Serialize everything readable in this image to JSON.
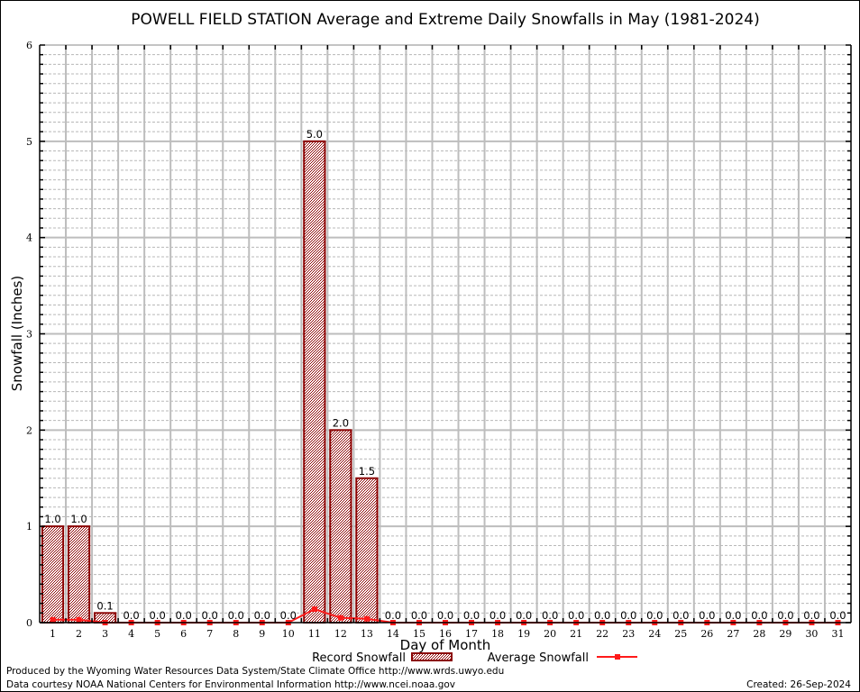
{
  "chart_data": {
    "type": "bar",
    "title": "POWELL FIELD STATION Average and Extreme Daily Snowfalls in May (1981-2024)",
    "xlabel": "Day of Month",
    "ylabel": "Snowfall (Inches)",
    "xlim": [
      0.5,
      31.5
    ],
    "ylim": [
      0,
      6
    ],
    "yticks": [
      "0",
      "1",
      "2",
      "3",
      "4",
      "5",
      "6"
    ],
    "grid": true,
    "categories": [
      "1",
      "2",
      "3",
      "4",
      "5",
      "6",
      "7",
      "8",
      "9",
      "10",
      "11",
      "12",
      "13",
      "14",
      "15",
      "16",
      "17",
      "18",
      "19",
      "20",
      "21",
      "22",
      "23",
      "24",
      "25",
      "26",
      "27",
      "28",
      "29",
      "30",
      "31"
    ],
    "series": [
      {
        "name": "Record Snowfall",
        "type": "bar",
        "color": "#8b0000",
        "values": [
          1.0,
          1.0,
          0.1,
          0.0,
          0.0,
          0.0,
          0.0,
          0.0,
          0.0,
          0.0,
          5.0,
          2.0,
          1.5,
          0.0,
          0.0,
          0.0,
          0.0,
          0.0,
          0.0,
          0.0,
          0.0,
          0.0,
          0.0,
          0.0,
          0.0,
          0.0,
          0.0,
          0.0,
          0.0,
          0.0,
          0.0
        ],
        "labels": [
          "1.0",
          "1.0",
          "0.1",
          "0.0",
          "0.0",
          "0.0",
          "0.0",
          "0.0",
          "0.0",
          "0.0",
          "5.0",
          "2.0",
          "1.5",
          "0.0",
          "0.0",
          "0.0",
          "0.0",
          "0.0",
          "0.0",
          "0.0",
          "0.0",
          "0.0",
          "0.0",
          "0.0",
          "0.0",
          "0.0",
          "0.0",
          "0.0",
          "0.0",
          "0.0",
          "0.0"
        ]
      },
      {
        "name": "Average Snowfall",
        "type": "line",
        "color": "#ff1a1a",
        "values": [
          0.03,
          0.03,
          0.0,
          0.0,
          0.0,
          0.0,
          0.0,
          0.0,
          0.0,
          0.0,
          0.14,
          0.05,
          0.04,
          0.0,
          0.0,
          0.0,
          0.0,
          0.0,
          0.0,
          0.0,
          0.0,
          0.0,
          0.0,
          0.0,
          0.0,
          0.0,
          0.0,
          0.0,
          0.0,
          0.0,
          0.0
        ]
      }
    ],
    "legend": {
      "placement": "bottom-center"
    }
  },
  "footer": {
    "produced_by": "Produced by the Wyoming Water Resources Data System/State Climate Office http://www.wrds.uwyo.edu",
    "data_courtesy": "Data courtesy NOAA National Centers for Environmental Information http://www.ncei.noaa.gov",
    "created": "Created: 26-Sep-2024"
  }
}
